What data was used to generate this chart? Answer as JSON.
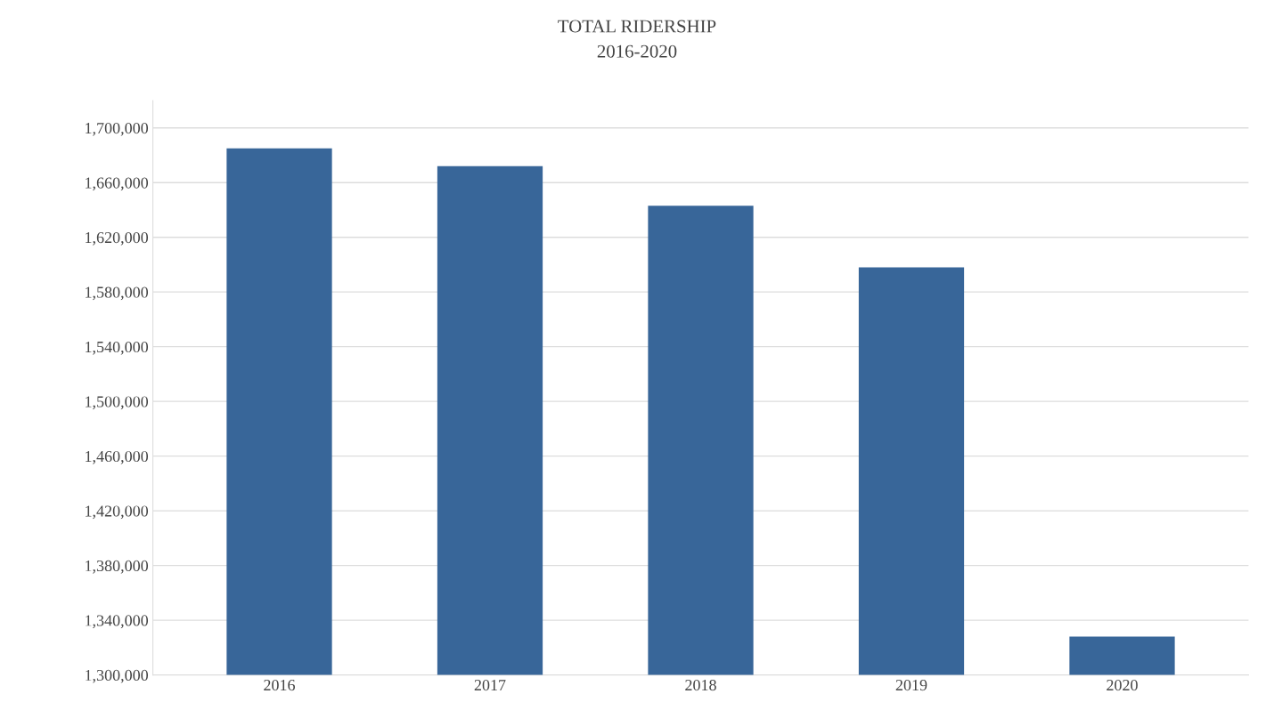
{
  "chart_data": {
    "type": "bar",
    "title": "TOTAL RIDERSHIP",
    "subtitle": "2016-2020",
    "categories": [
      "2016",
      "2017",
      "2018",
      "2019",
      "2020"
    ],
    "values": [
      1685000,
      1672000,
      1643000,
      1598000,
      1328000
    ],
    "color": "#386699",
    "ylim": [
      1300000,
      1720000
    ],
    "yticks": [
      {
        "value": 1300000,
        "label": "1,300,000"
      },
      {
        "value": 1340000,
        "label": "1,340,000"
      },
      {
        "value": 1380000,
        "label": "1,380,000"
      },
      {
        "value": 1420000,
        "label": "1,420,000"
      },
      {
        "value": 1460000,
        "label": "1,460,000"
      },
      {
        "value": 1500000,
        "label": "1,500,000"
      },
      {
        "value": 1540000,
        "label": "1,540,000"
      },
      {
        "value": 1580000,
        "label": "1,580,000"
      },
      {
        "value": 1620000,
        "label": "1,620,000"
      },
      {
        "value": 1660000,
        "label": "1,660,000"
      },
      {
        "value": 1700000,
        "label": "1,700,000"
      }
    ],
    "grid": "y"
  }
}
